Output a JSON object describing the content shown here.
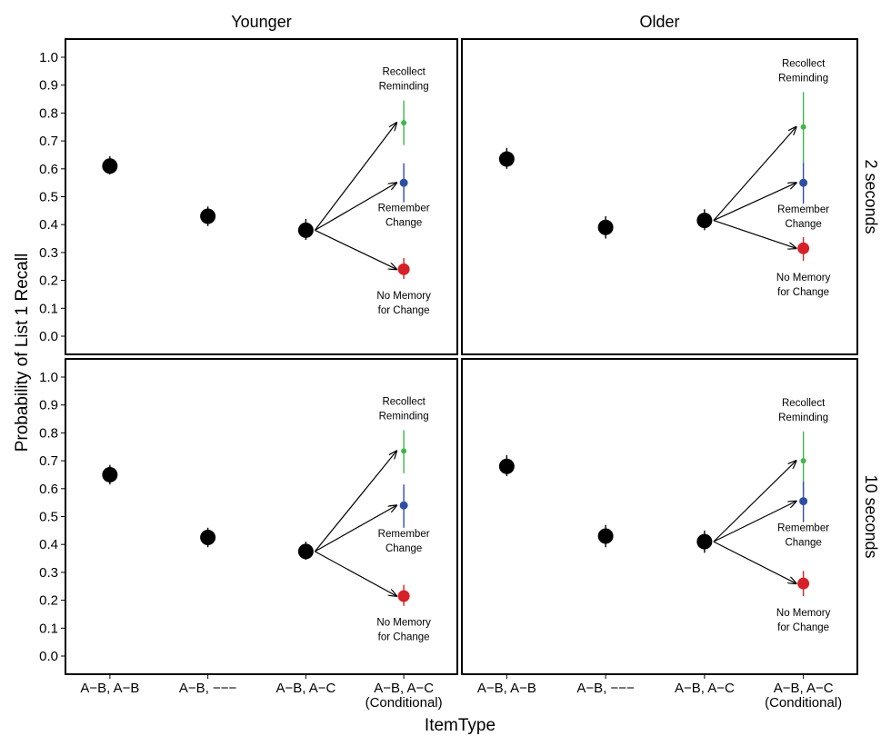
{
  "chart_data": {
    "type": "scatter",
    "xlabel": "ItemType",
    "ylabel": "Probability of List 1 Recall",
    "ylim": [
      0,
      1
    ],
    "yticks": [
      "0.0",
      "0.1",
      "0.2",
      "0.3",
      "0.4",
      "0.5",
      "0.6",
      "0.7",
      "0.8",
      "0.9",
      "1.0"
    ],
    "categories": [
      "A−B, A−B",
      "A−B, −−−",
      "A−B, A−C",
      "A−B, A−C\n(Conditional)"
    ],
    "columns": [
      "Younger",
      "Older"
    ],
    "rows": [
      "2 seconds",
      "10 seconds"
    ],
    "colors": {
      "main": "#000000",
      "recollect": "#3fb64a",
      "remember": "#2f4fa5",
      "nomemory": "#d62027"
    },
    "annotations": {
      "recollect": "Recollect\nReminding",
      "remember": "Remember\nChange",
      "nomemory": "No Memory\nfor Change"
    },
    "panels": [
      {
        "column": "Younger",
        "row": "2 seconds",
        "points": [
          {
            "y": 0.61,
            "lo": 0.58,
            "hi": 0.645
          },
          {
            "y": 0.43,
            "lo": 0.395,
            "hi": 0.465
          },
          {
            "y": 0.38,
            "lo": 0.345,
            "hi": 0.42
          }
        ],
        "conditional": {
          "recollect": {
            "y": 0.765,
            "lo": 0.685,
            "hi": 0.845
          },
          "remember": {
            "y": 0.55,
            "lo": 0.48,
            "hi": 0.62
          },
          "nomemory": {
            "y": 0.24,
            "lo": 0.205,
            "hi": 0.28
          }
        }
      },
      {
        "column": "Older",
        "row": "2 seconds",
        "points": [
          {
            "y": 0.635,
            "lo": 0.6,
            "hi": 0.675
          },
          {
            "y": 0.39,
            "lo": 0.35,
            "hi": 0.43
          },
          {
            "y": 0.415,
            "lo": 0.38,
            "hi": 0.455
          }
        ],
        "conditional": {
          "recollect": {
            "y": 0.75,
            "lo": 0.615,
            "hi": 0.875
          },
          "remember": {
            "y": 0.55,
            "lo": 0.475,
            "hi": 0.62
          },
          "nomemory": {
            "y": 0.315,
            "lo": 0.27,
            "hi": 0.355
          }
        }
      },
      {
        "column": "Younger",
        "row": "10 seconds",
        "points": [
          {
            "y": 0.65,
            "lo": 0.615,
            "hi": 0.685
          },
          {
            "y": 0.425,
            "lo": 0.39,
            "hi": 0.46
          },
          {
            "y": 0.375,
            "lo": 0.345,
            "hi": 0.41
          }
        ],
        "conditional": {
          "recollect": {
            "y": 0.735,
            "lo": 0.655,
            "hi": 0.81
          },
          "remember": {
            "y": 0.54,
            "lo": 0.46,
            "hi": 0.615
          },
          "nomemory": {
            "y": 0.215,
            "lo": 0.18,
            "hi": 0.255
          }
        }
      },
      {
        "column": "Older",
        "row": "10 seconds",
        "points": [
          {
            "y": 0.68,
            "lo": 0.645,
            "hi": 0.72
          },
          {
            "y": 0.43,
            "lo": 0.39,
            "hi": 0.47
          },
          {
            "y": 0.41,
            "lo": 0.37,
            "hi": 0.45
          }
        ],
        "conditional": {
          "recollect": {
            "y": 0.7,
            "lo": 0.585,
            "hi": 0.805
          },
          "remember": {
            "y": 0.555,
            "lo": 0.48,
            "hi": 0.625
          },
          "nomemory": {
            "y": 0.26,
            "lo": 0.215,
            "hi": 0.305
          }
        }
      }
    ]
  }
}
